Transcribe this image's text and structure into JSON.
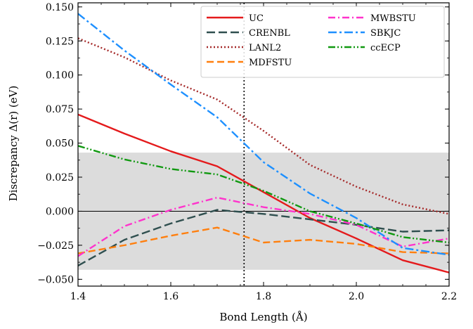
{
  "chart_data": {
    "type": "line",
    "title": "",
    "xlabel": "Bond Length (Å)",
    "ylabel": "Discrepancy Δ(r) (eV)",
    "xlim": [
      1.4,
      2.2
    ],
    "ylim": [
      -0.055,
      0.153
    ],
    "xticks": [
      1.4,
      1.6,
      1.8,
      2.0,
      2.2
    ],
    "xtick_labels": [
      "1.4",
      "1.6",
      "1.8",
      "2.0",
      "2.2"
    ],
    "yticks": [
      -0.05,
      -0.025,
      0.0,
      0.025,
      0.05,
      0.075,
      0.1,
      0.125,
      0.15
    ],
    "ytick_labels": [
      "−0.050",
      "−0.025",
      "0.000",
      "0.025",
      "0.050",
      "0.075",
      "0.100",
      "0.125",
      "0.150"
    ],
    "grid": false,
    "shaded_band": {
      "y0": -0.043,
      "y1": 0.043,
      "color": "#dcdcdc"
    },
    "reference_hline": {
      "y": 0.0,
      "color": "#000000"
    },
    "reference_vline": {
      "x": 1.758,
      "color": "#000000",
      "style": "dotted"
    },
    "legend": {
      "placement": "top-right",
      "columns": 2
    },
    "x": [
      1.4,
      1.5,
      1.6,
      1.7,
      1.8,
      1.9,
      2.0,
      2.1,
      2.2
    ],
    "series": [
      {
        "name": "UC",
        "color": "#e41a1c",
        "dash": "solid",
        "values": [
          0.071,
          0.057,
          0.044,
          0.033,
          0.014,
          -0.005,
          -0.02,
          -0.036,
          -0.045
        ]
      },
      {
        "name": "CRENBL",
        "color": "#2f4f4f",
        "dash": "12,5",
        "values": [
          -0.04,
          -0.021,
          -0.009,
          0.001,
          -0.002,
          -0.006,
          -0.01,
          -0.015,
          -0.014
        ]
      },
      {
        "name": "LANL2",
        "color": "#a52a2a",
        "dash": "2,3",
        "values": [
          0.127,
          0.113,
          0.096,
          0.082,
          0.059,
          0.034,
          0.018,
          0.005,
          -0.002
        ]
      },
      {
        "name": "MDFSTU",
        "color": "#ff7f0e",
        "dash": "10,5",
        "values": [
          -0.031,
          -0.025,
          -0.018,
          -0.012,
          -0.023,
          -0.021,
          -0.024,
          -0.03,
          -0.031
        ]
      },
      {
        "name": "MWBSTU",
        "color": "#ff33cc",
        "dash": "10,4,2,4",
        "values": [
          -0.033,
          -0.011,
          0.001,
          0.01,
          0.003,
          -0.002,
          -0.01,
          -0.026,
          -0.02
        ]
      },
      {
        "name": "SBKJC",
        "color": "#1e90ff",
        "dash": "12,4,3,4",
        "values": [
          0.145,
          0.118,
          0.093,
          0.069,
          0.036,
          0.013,
          -0.005,
          -0.027,
          -0.032
        ]
      },
      {
        "name": "ccECP",
        "color": "#119911",
        "dash": "10,3,2,3,2,3",
        "values": [
          0.048,
          0.038,
          0.031,
          0.027,
          0.015,
          0.0,
          -0.009,
          -0.019,
          -0.023
        ]
      }
    ]
  }
}
